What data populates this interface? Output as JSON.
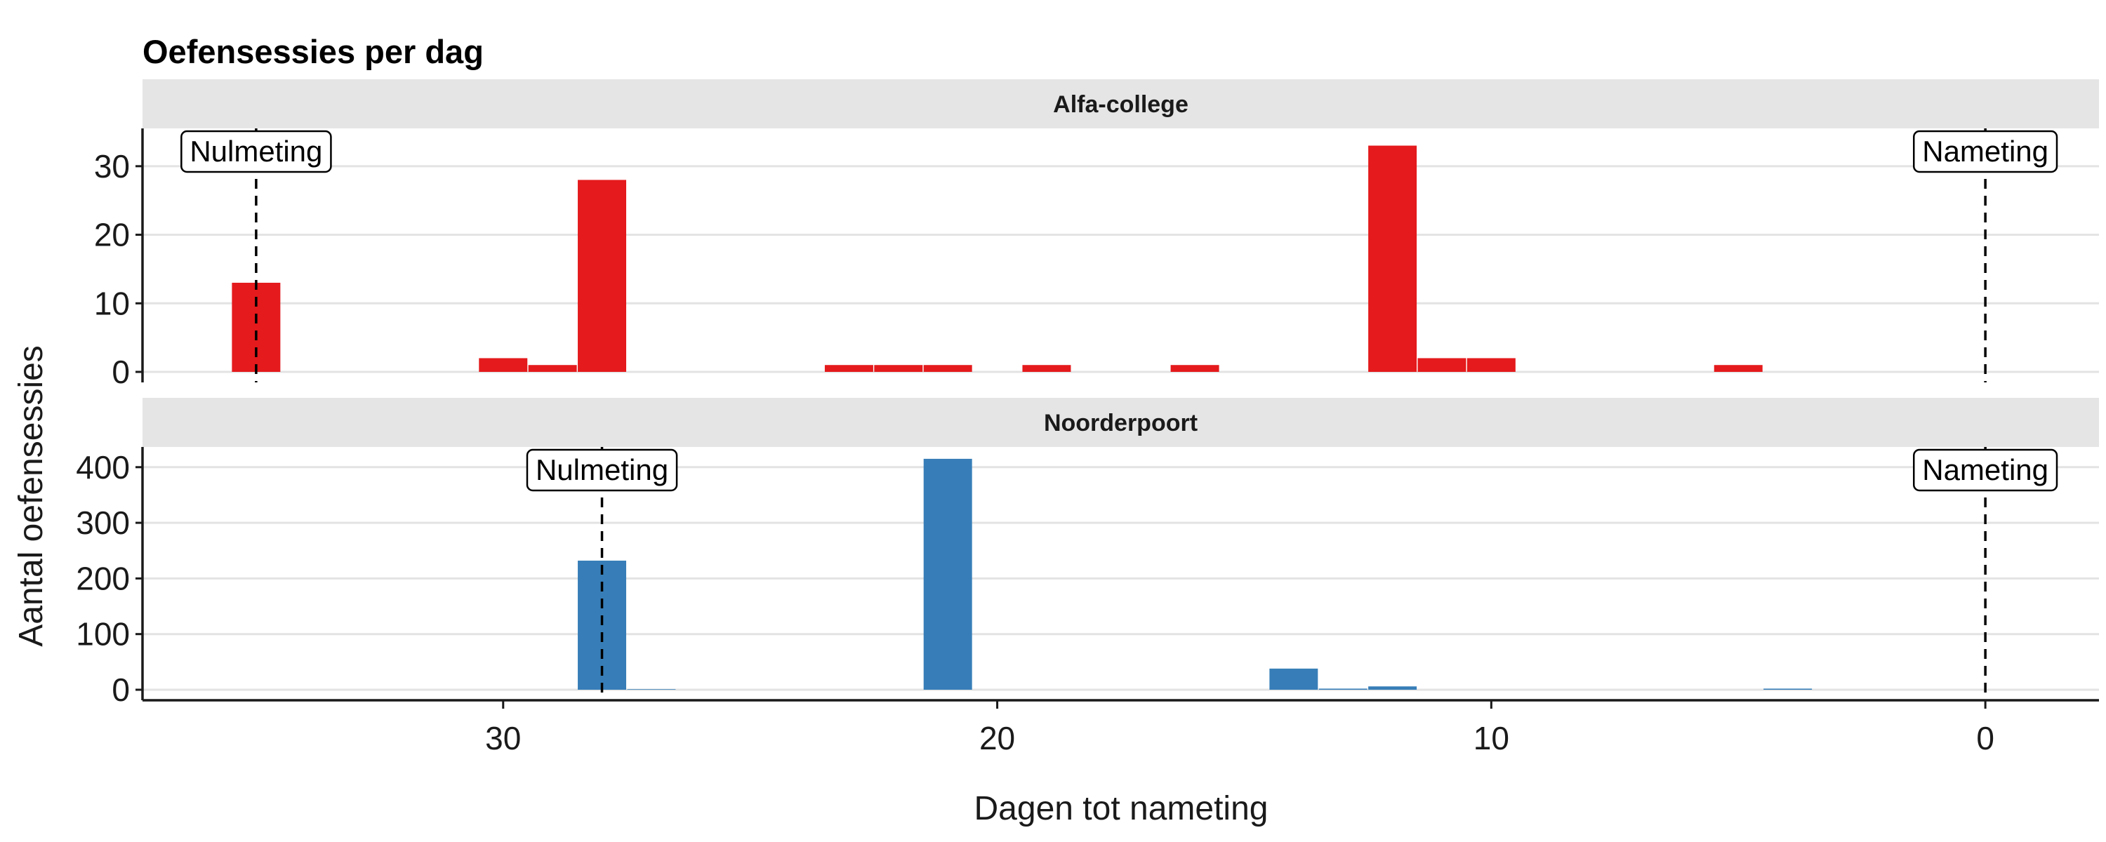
{
  "chart_data": {
    "type": "bar",
    "title": "Oefensessies per dag",
    "xlabel": "Dagen tot nameting",
    "ylabel": "Aantal oefensessies",
    "x_reversed": true,
    "xlim": [
      37.3,
      -2.3
    ],
    "x_ticks": [
      30,
      20,
      10,
      0
    ],
    "grid": "horizontal",
    "legend": "none",
    "panels": [
      {
        "name": "Alfa-college",
        "color": "#E41A1C",
        "ylim": [
          0,
          35
        ],
        "y_ticks": [
          0,
          10,
          20,
          30
        ],
        "x": [
          35,
          30,
          29,
          28,
          23,
          22,
          21,
          19,
          16,
          12,
          11,
          10,
          5
        ],
        "values": [
          13,
          2,
          1,
          28,
          1,
          1,
          1,
          1,
          1,
          33,
          2,
          2,
          1
        ],
        "annotations": [
          {
            "x": 35,
            "label": "Nulmeting"
          },
          {
            "x": 0,
            "label": "Nameting"
          }
        ]
      },
      {
        "name": "Noorderpoort",
        "color": "#377EB8",
        "ylim": [
          0,
          430
        ],
        "y_ticks": [
          0,
          100,
          200,
          300,
          400
        ],
        "x": [
          28,
          27,
          21,
          14,
          13,
          12,
          4
        ],
        "values": [
          232,
          1,
          415,
          38,
          2,
          6,
          2
        ],
        "annotations": [
          {
            "x": 28,
            "label": "Nulmeting"
          },
          {
            "x": 0,
            "label": "Nameting"
          }
        ]
      }
    ]
  }
}
